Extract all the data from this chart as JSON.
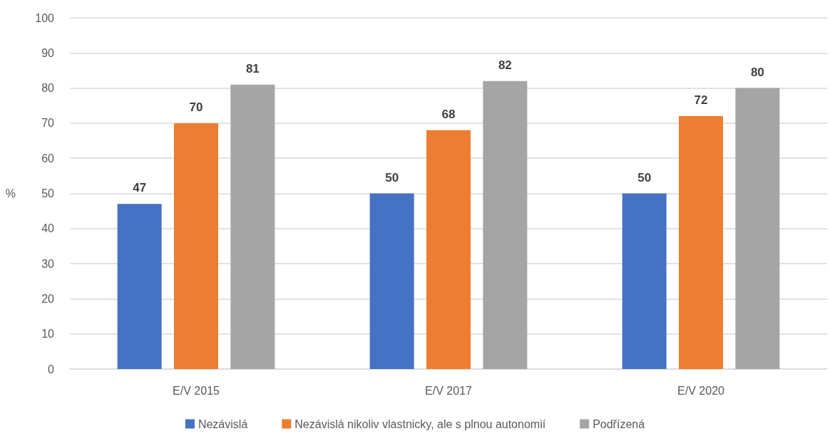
{
  "chart_data": {
    "type": "bar",
    "ylabel": "%",
    "categories": [
      "E/V 2015",
      "E/V 2017",
      "E/V 2020"
    ],
    "series": [
      {
        "name": "Nezávislá",
        "color": "#4472c4",
        "values": [
          47,
          50,
          50
        ]
      },
      {
        "name": "Nezávislá nikoliv vlastnicky, ale s plnou autonomií",
        "color": "#ed7d31",
        "values": [
          70,
          68,
          72
        ]
      },
      {
        "name": "Podřízená",
        "color": "#a5a5a5",
        "values": [
          81,
          82,
          80
        ]
      }
    ],
    "ylim": [
      0,
      100
    ],
    "yticks": [
      0,
      10,
      20,
      30,
      40,
      50,
      60,
      70,
      80,
      90,
      100
    ],
    "grid": "y",
    "legend": "bottom",
    "data_labels": true
  }
}
